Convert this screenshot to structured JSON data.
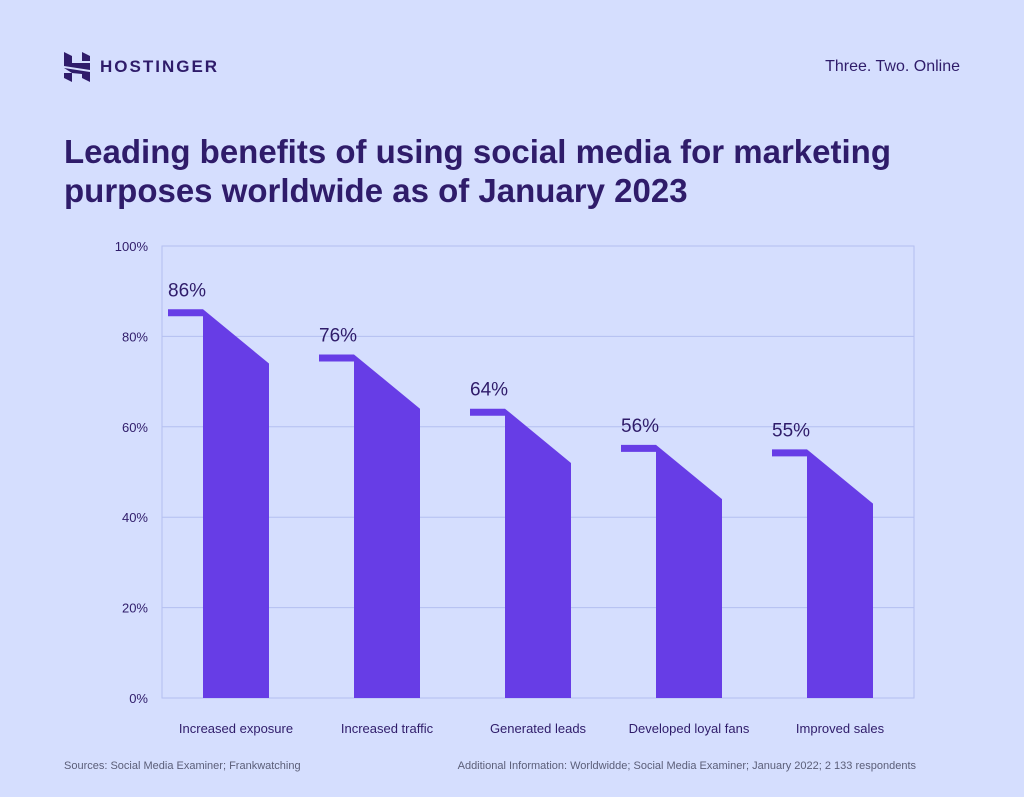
{
  "brand": {
    "name": "HOSTINGER",
    "tagline": "Three. Two. Online"
  },
  "colors": {
    "background": "#d5defe",
    "bar": "#673de6",
    "text": "#2f1c6a",
    "grid": "#b4bff0"
  },
  "chart_data": {
    "type": "bar",
    "title": "Leading benefits of using social media for marketing purposes worldwide as of January 2023",
    "categories": [
      "Increased exposure",
      "Increased traffic",
      "Generated leads",
      "Developed loyal fans",
      "Improved sales"
    ],
    "values": [
      86,
      76,
      64,
      56,
      55
    ],
    "data_labels": [
      "86%",
      "76%",
      "64%",
      "56%",
      "55%"
    ],
    "ylim": [
      0,
      100
    ],
    "yticks": [
      0,
      20,
      40,
      60,
      80,
      100
    ],
    "ytick_labels": [
      "0%",
      "20%",
      "40%",
      "60%",
      "80%",
      "100%"
    ],
    "grid": true,
    "xlabel": "",
    "ylabel": ""
  },
  "footer": {
    "sources": "Sources: Social Media Examiner; Frankwatching",
    "additional": "Additional Information: Worldwidde; Social Media Examiner; January 2022; 2 133 respondents"
  }
}
